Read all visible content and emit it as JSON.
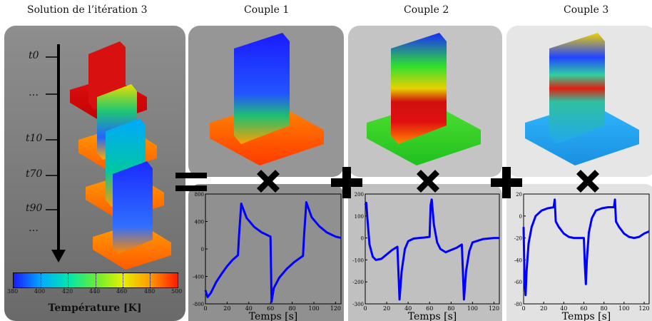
{
  "titles": {
    "solution": "Solution de l’itération 3",
    "couple1": "Couple 1",
    "couple2": "Couple 2",
    "couple3": "Couple 3"
  },
  "time_labels": [
    "t0",
    "…",
    "t10",
    "t70",
    "t90",
    "…"
  ],
  "colorbar": {
    "ticks": [
      "380",
      "400",
      "420",
      "440",
      "460",
      "480",
      "500"
    ],
    "label": "Température [K]",
    "colors": [
      "#1a1aff",
      "#00aaff",
      "#00e6b0",
      "#66ee33",
      "#e6f000",
      "#ff9900",
      "#ff1a00"
    ]
  },
  "operators": [
    "=",
    "×",
    "+",
    "×",
    "+",
    "×"
  ],
  "chart_data": [
    {
      "type": "line",
      "xlabel": "Temps [s]",
      "x_ticks": [
        "0",
        "20",
        "40",
        "60",
        "80",
        "100",
        "120"
      ],
      "y_ticks": [
        "800",
        "400",
        "0",
        "-400",
        "-800"
      ],
      "xlim": [
        0,
        125
      ],
      "ylim": [
        -800,
        800
      ],
      "color": "#0000ff",
      "x": [
        0,
        2,
        5,
        10,
        15,
        20,
        25,
        30,
        31,
        33,
        38,
        45,
        52,
        60,
        61,
        63,
        68,
        75,
        82,
        90,
        91,
        93,
        98,
        105,
        112,
        120,
        125
      ],
      "y": [
        -600,
        -700,
        -640,
        -480,
        -360,
        -250,
        -160,
        -90,
        200,
        660,
        450,
        320,
        240,
        180,
        -770,
        -570,
        -420,
        -290,
        -190,
        -100,
        200,
        680,
        460,
        330,
        240,
        180,
        160
      ]
    },
    {
      "type": "line",
      "xlabel": "Temps [s]",
      "x_ticks": [
        "0",
        "20",
        "40",
        "60",
        "80",
        "100",
        "120"
      ],
      "y_ticks": [
        "200",
        "100",
        "0",
        "-100",
        "-200",
        "-300"
      ],
      "xlim": [
        0,
        125
      ],
      "ylim": [
        -300,
        200
      ],
      "color": "#0000ff",
      "x": [
        0,
        1,
        2,
        4,
        7,
        10,
        15,
        20,
        25,
        30,
        31,
        32,
        34,
        37,
        40,
        45,
        50,
        55,
        60,
        61,
        62,
        64,
        67,
        70,
        75,
        80,
        85,
        90,
        91,
        92,
        94,
        97,
        100,
        110,
        120,
        125
      ],
      "y": [
        150,
        160,
        90,
        -30,
        -85,
        -100,
        -95,
        -75,
        -55,
        -40,
        -160,
        -280,
        -150,
        -50,
        -15,
        -3,
        0,
        2,
        5,
        150,
        175,
        60,
        -20,
        -50,
        -65,
        -55,
        -45,
        -30,
        -150,
        -280,
        -150,
        -60,
        -20,
        -5,
        0,
        0
      ]
    },
    {
      "type": "line",
      "xlabel": "Temps [s]",
      "x_ticks": [
        "0",
        "20",
        "40",
        "60",
        "80",
        "100",
        "120"
      ],
      "y_ticks": [
        "20",
        "0",
        "-20",
        "-40",
        "-60",
        "-80"
      ],
      "xlim": [
        0,
        125
      ],
      "ylim": [
        -80,
        20
      ],
      "color": "#0000ff",
      "x": [
        0,
        1,
        2,
        3,
        5,
        8,
        12,
        18,
        24,
        30,
        31,
        32,
        35,
        40,
        45,
        50,
        55,
        60,
        61,
        62,
        63,
        65,
        68,
        72,
        78,
        84,
        90,
        91,
        92,
        95,
        100,
        105,
        110,
        115,
        120,
        125
      ],
      "y": [
        -10,
        -60,
        -72,
        -50,
        -25,
        -10,
        0,
        5,
        7,
        8,
        15,
        -5,
        -10,
        -16,
        -19,
        -20,
        -20,
        -20,
        -45,
        -62,
        -40,
        -15,
        -2,
        5,
        7,
        8,
        8,
        15,
        -5,
        -10,
        -16,
        -19,
        -20,
        -19,
        -16,
        -14
      ]
    }
  ]
}
